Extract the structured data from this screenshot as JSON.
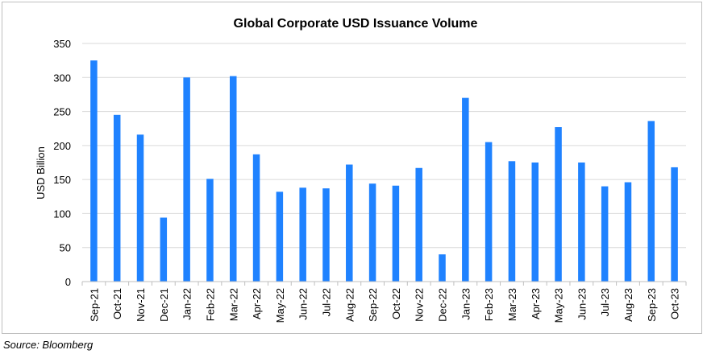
{
  "chart_data": {
    "type": "bar",
    "title": "Global Corporate USD Issuance Volume",
    "ylabel": "USD Billion",
    "xlabel": "",
    "ylim": [
      0,
      350
    ],
    "yticks": [
      "0",
      "50",
      "100",
      "150",
      "200",
      "250",
      "300",
      "350"
    ],
    "grid": true,
    "bar_color": "#1f82ff",
    "grid_color": "#d9d9d9",
    "categories": [
      "Sep-21",
      "Oct-21",
      "Nov-21",
      "Dec-21",
      "Jan-22",
      "Feb-22",
      "Mar-22",
      "Apr-22",
      "May-22",
      "Jun-22",
      "Jul-22",
      "Aug-22",
      "Sep-22",
      "Oct-22",
      "Nov-22",
      "Dec-22",
      "Jan-23",
      "Feb-23",
      "Mar-23",
      "Apr-23",
      "May-23",
      "Jun-23",
      "Jul-23",
      "Aug-23",
      "Sep-23",
      "Oct-23"
    ],
    "values": [
      325,
      245,
      216,
      94,
      300,
      151,
      302,
      187,
      132,
      138,
      137,
      172,
      144,
      141,
      167,
      40,
      270,
      205,
      177,
      175,
      227,
      175,
      140,
      146,
      236,
      168
    ]
  },
  "source": "Source: Bloomberg"
}
